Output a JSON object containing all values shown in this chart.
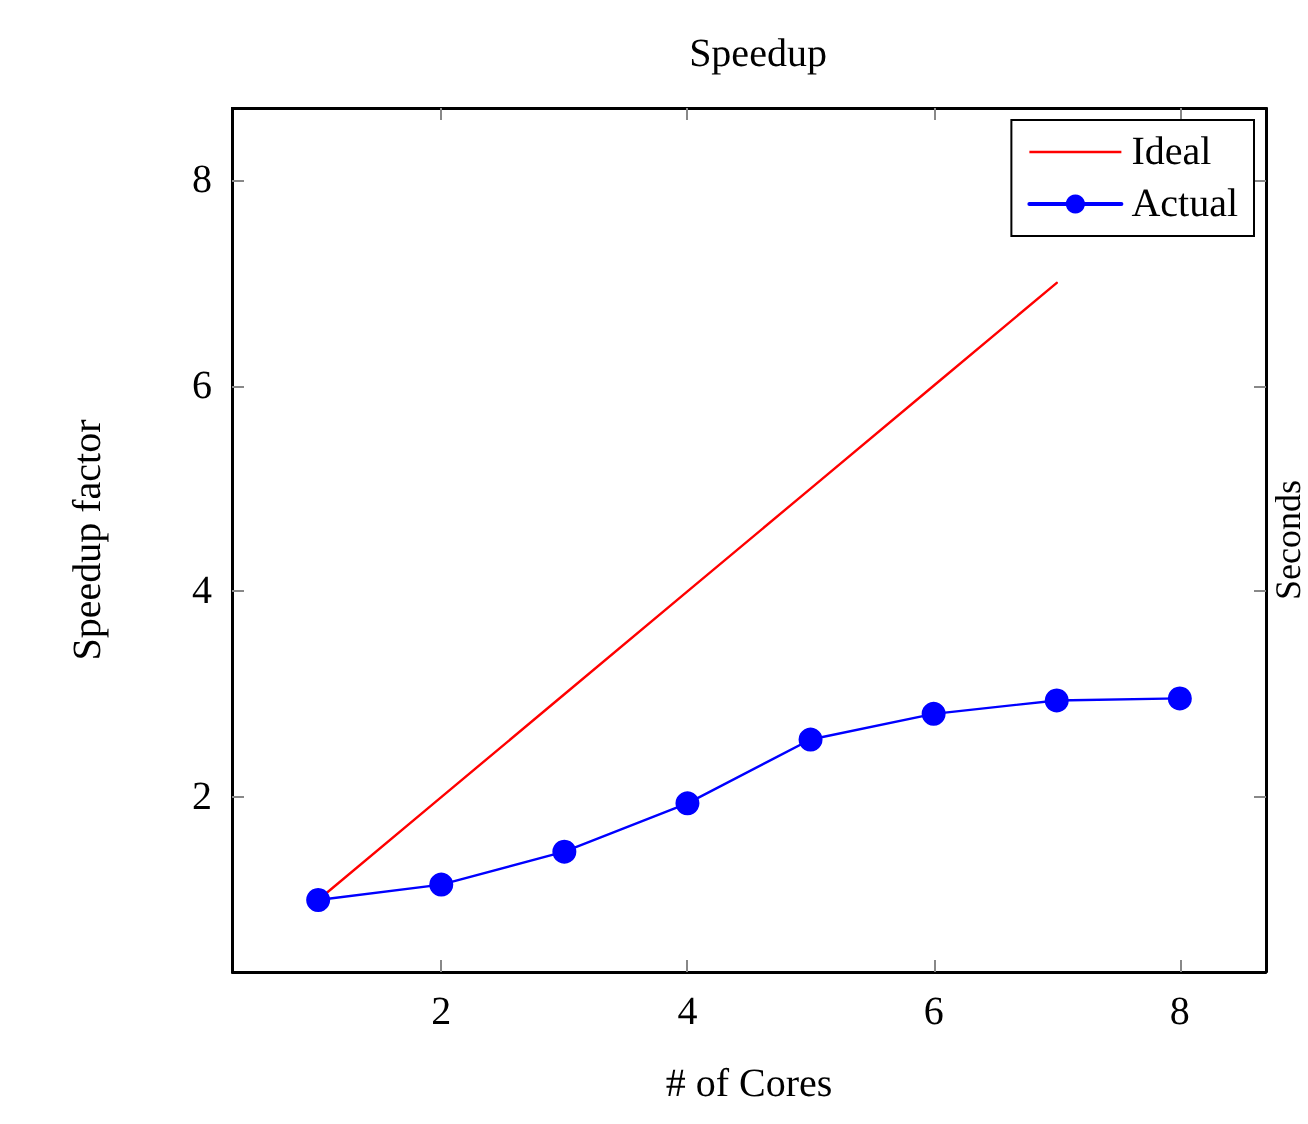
{
  "chart_data": {
    "type": "line",
    "title": "Speedup",
    "xlabel": "# of Cores",
    "ylabel": "Speedup factor",
    "y2label": "Seconds",
    "x": [
      1,
      2,
      3,
      4,
      5,
      6,
      7,
      8
    ],
    "series": [
      {
        "name": "Ideal",
        "color": "#ff0000",
        "marker": "none",
        "values": [
          1,
          2,
          3,
          4,
          5,
          6,
          7,
          null
        ]
      },
      {
        "name": "Actual",
        "color": "#0000ff",
        "marker": "circle",
        "values": [
          1.0,
          1.15,
          1.47,
          1.94,
          2.56,
          2.81,
          2.94,
          2.96
        ]
      }
    ],
    "xlim": [
      0.3,
      8.7
    ],
    "xticks": [
      2,
      4,
      6,
      8
    ],
    "ylim": [
      0.3,
      8.7
    ],
    "yticks": [
      2,
      4,
      6,
      8
    ],
    "grid": false,
    "legend": "top right",
    "line_style": "solid"
  }
}
